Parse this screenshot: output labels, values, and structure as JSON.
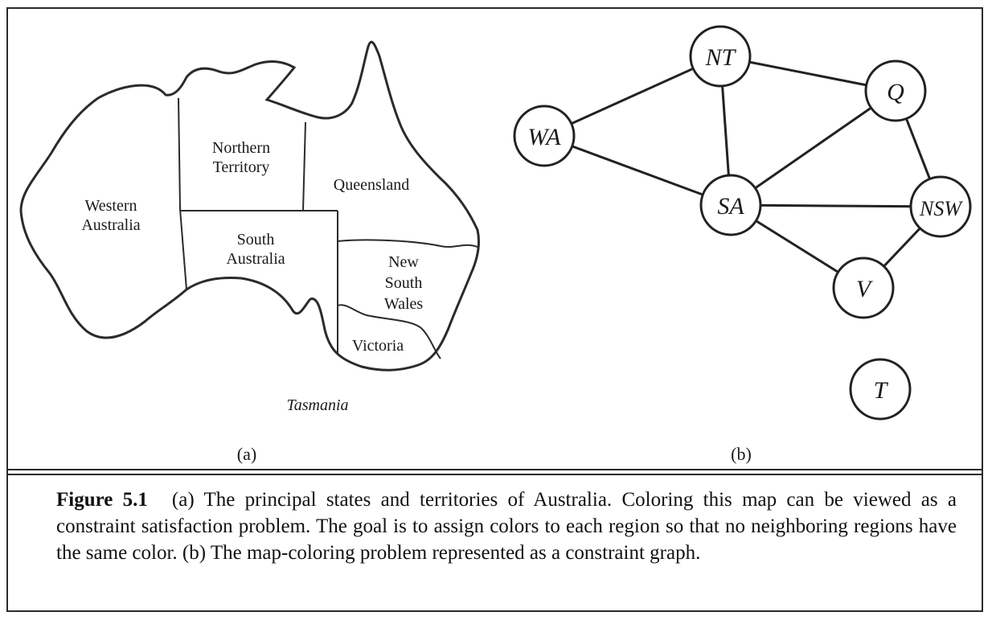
{
  "map_panel": {
    "regions": {
      "western_australia": [
        "Western",
        "Australia"
      ],
      "northern_territory": [
        "Northern",
        "Territory"
      ],
      "queensland": [
        "Queensland"
      ],
      "south_australia": [
        "South",
        "Australia"
      ],
      "new_south_wales": [
        "New",
        "South",
        "Wales"
      ],
      "victoria": [
        "Victoria"
      ],
      "tasmania": [
        "Tasmania"
      ]
    },
    "panel_label": "(a)"
  },
  "graph_panel": {
    "nodes": [
      "NT",
      "Q",
      "WA",
      "SA",
      "NSW",
      "V",
      "T"
    ],
    "edges": [
      [
        "WA",
        "NT"
      ],
      [
        "WA",
        "SA"
      ],
      [
        "NT",
        "SA"
      ],
      [
        "NT",
        "Q"
      ],
      [
        "SA",
        "Q"
      ],
      [
        "SA",
        "NSW"
      ],
      [
        "SA",
        "V"
      ],
      [
        "Q",
        "NSW"
      ],
      [
        "NSW",
        "V"
      ]
    ],
    "panel_label": "(b)"
  },
  "caption": {
    "label": "Figure 5.1",
    "text": "(a) The principal states and territories of Australia. Coloring this map can be viewed as a constraint satisfaction problem. The goal is to assign colors to each region so that no neighboring regions have the same color. (b) The map-coloring problem represented as a constraint graph."
  }
}
